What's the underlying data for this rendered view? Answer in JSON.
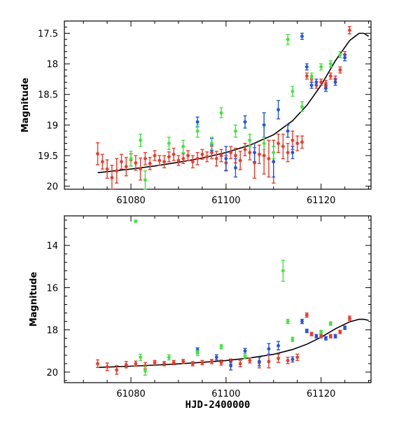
{
  "colors": {
    "red": "#ee3a2a",
    "blue": "#1f55e6",
    "green": "#3ee63a",
    "model": "#000000"
  },
  "xlabel": "HJD-2400000",
  "chart_data": [
    {
      "type": "scatter",
      "panel": "top",
      "ylabel": "Magnitude",
      "xlim": [
        61066,
        61130.5
      ],
      "ylim": [
        17.3,
        20.05
      ],
      "yinverted": true,
      "xticks": [
        "61080",
        "61100",
        "61120"
      ],
      "xtick_values": [
        61080,
        61100,
        61120
      ],
      "yticks": [
        "17.5",
        "18",
        "18.5",
        "19",
        "19.5",
        "20"
      ],
      "ytick_values": [
        17.5,
        18,
        18.5,
        19,
        19.5,
        20
      ],
      "series": [
        {
          "name": "red",
          "points": [
            [
              61073,
              19.47,
              0.18
            ],
            [
              61074,
              19.6,
              0.12
            ],
            [
              61075,
              19.72,
              0.15
            ],
            [
              61076,
              19.86,
              0.2
            ],
            [
              61077,
              19.75,
              0.2
            ],
            [
              61078,
              19.6,
              0.12
            ],
            [
              61079,
              19.68,
              0.15
            ],
            [
              61080,
              19.57,
              0.1
            ],
            [
              61081,
              19.62,
              0.12
            ],
            [
              61082,
              19.72,
              0.18
            ],
            [
              61083,
              19.55,
              0.1
            ],
            [
              61084,
              19.63,
              0.1
            ],
            [
              61085,
              19.5,
              0.08
            ],
            [
              61086,
              19.58,
              0.08
            ],
            [
              61087,
              19.6,
              0.1
            ],
            [
              61088,
              19.52,
              0.08
            ],
            [
              61089,
              19.48,
              0.1
            ],
            [
              61090,
              19.58,
              0.08
            ],
            [
              61091,
              19.55,
              0.08
            ],
            [
              61092,
              19.5,
              0.08
            ],
            [
              61093,
              19.6,
              0.1
            ],
            [
              61094,
              19.55,
              0.1
            ],
            [
              61095,
              19.48,
              0.08
            ],
            [
              61096,
              19.52,
              0.08
            ],
            [
              61097,
              19.45,
              0.1
            ],
            [
              61098,
              19.55,
              0.12
            ],
            [
              61099,
              19.5,
              0.1
            ],
            [
              61100,
              19.62,
              0.12
            ],
            [
              61101,
              19.45,
              0.1
            ],
            [
              61102,
              19.5,
              0.12
            ],
            [
              61103,
              19.58,
              0.15
            ],
            [
              61104,
              19.4,
              0.1
            ],
            [
              61105,
              19.45,
              0.12
            ],
            [
              61106,
              19.62,
              0.25
            ],
            [
              61107,
              19.48,
              0.15
            ],
            [
              61108,
              19.5,
              0.3
            ],
            [
              61109,
              19.55,
              0.3
            ],
            [
              61110,
              19.6,
              0.35
            ],
            [
              61111,
              19.3,
              0.15
            ],
            [
              61112,
              19.35,
              0.2
            ],
            [
              61113,
              19.45,
              0.15
            ],
            [
              61114,
              19.25,
              0.15
            ],
            [
              61115,
              19.3,
              0.12
            ],
            [
              61116,
              19.28,
              0.1
            ],
            [
              61117,
              18.2,
              0.05
            ],
            [
              61118,
              18.25,
              0.05
            ],
            [
              61119,
              18.35,
              0.05
            ],
            [
              61120,
              18.3,
              0.05
            ],
            [
              61121,
              18.32,
              0.05
            ],
            [
              61122,
              18.2,
              0.05
            ],
            [
              61123,
              18.25,
              0.05
            ],
            [
              61124,
              18.1,
              0.05
            ],
            [
              61125,
              17.85,
              0.05
            ],
            [
              61126,
              17.45,
              0.06
            ]
          ]
        },
        {
          "name": "blue",
          "points": [
            [
              61094,
              18.95,
              0.08
            ],
            [
              61097,
              19.32,
              0.1
            ],
            [
              61100,
              19.55,
              0.2
            ],
            [
              61102,
              19.7,
              0.15
            ],
            [
              61104,
              18.95,
              0.1
            ],
            [
              61106,
              19.45,
              0.15
            ],
            [
              61108,
              19.0,
              0.2
            ],
            [
              61110,
              19.6,
              0.25
            ],
            [
              61111,
              18.75,
              0.15
            ],
            [
              61113,
              19.1,
              0.1
            ],
            [
              61114,
              19.45,
              0.1
            ],
            [
              61116,
              17.55,
              0.05
            ],
            [
              61117,
              18.05,
              0.05
            ],
            [
              61118,
              18.35,
              0.05
            ],
            [
              61119,
              18.3,
              0.05
            ],
            [
              61121,
              18.4,
              0.05
            ],
            [
              61123,
              18.3,
              0.05
            ],
            [
              61125,
              17.9,
              0.05
            ]
          ]
        },
        {
          "name": "green",
          "points": [
            [
              61080,
              19.55,
              0.12
            ],
            [
              61082,
              19.25,
              0.1
            ],
            [
              61083,
              19.9,
              0.15
            ],
            [
              61088,
              19.3,
              0.1
            ],
            [
              61091,
              19.35,
              0.1
            ],
            [
              61094,
              19.1,
              0.1
            ],
            [
              61097,
              19.3,
              0.1
            ],
            [
              61099,
              18.8,
              0.08
            ],
            [
              61102,
              19.1,
              0.1
            ],
            [
              61105,
              19.25,
              0.1
            ],
            [
              61108,
              19.3,
              0.1
            ],
            [
              61110,
              19.45,
              0.1
            ],
            [
              61113,
              17.6,
              0.08
            ],
            [
              61114,
              18.45,
              0.08
            ],
            [
              61116,
              18.7,
              0.08
            ],
            [
              61118,
              18.2,
              0.05
            ],
            [
              61120,
              18.05,
              0.05
            ],
            [
              61122,
              18.0,
              0.05
            ],
            [
              61124,
              17.85,
              0.05
            ]
          ]
        }
      ],
      "model": [
        [
          61073,
          19.78
        ],
        [
          61080,
          19.72
        ],
        [
          61085,
          19.67
        ],
        [
          61090,
          19.61
        ],
        [
          61095,
          19.54
        ],
        [
          61100,
          19.45
        ],
        [
          61105,
          19.33
        ],
        [
          61110,
          19.16
        ],
        [
          61114,
          18.93
        ],
        [
          61117,
          18.68
        ],
        [
          61120,
          18.35
        ],
        [
          61123,
          17.95
        ],
        [
          61126,
          17.62
        ],
        [
          61128,
          17.5
        ],
        [
          61129,
          17.5
        ],
        [
          61130,
          17.55
        ]
      ]
    },
    {
      "type": "scatter",
      "panel": "bottom",
      "ylabel": "Magnitude",
      "xlim": [
        61066,
        61130.5
      ],
      "ylim": [
        12.6,
        20.5
      ],
      "yinverted": true,
      "xticks": [
        "61080",
        "61100",
        "61120"
      ],
      "xtick_values": [
        61080,
        61100,
        61120
      ],
      "yticks": [
        "14",
        "16",
        "18",
        "20"
      ],
      "ytick_values": [
        14,
        16,
        18,
        20
      ],
      "series": [
        {
          "name": "red",
          "points": [
            [
              61073,
              19.6,
              0.18
            ],
            [
              61075,
              19.75,
              0.18
            ],
            [
              61077,
              19.9,
              0.2
            ],
            [
              61079,
              19.65,
              0.15
            ],
            [
              61081,
              19.6,
              0.12
            ],
            [
              61083,
              19.7,
              0.15
            ],
            [
              61085,
              19.55,
              0.1
            ],
            [
              61087,
              19.6,
              0.1
            ],
            [
              61089,
              19.55,
              0.1
            ],
            [
              61091,
              19.5,
              0.1
            ],
            [
              61093,
              19.6,
              0.1
            ],
            [
              61095,
              19.55,
              0.1
            ],
            [
              61097,
              19.5,
              0.1
            ],
            [
              61099,
              19.55,
              0.12
            ],
            [
              61101,
              19.5,
              0.12
            ],
            [
              61103,
              19.6,
              0.15
            ],
            [
              61105,
              19.45,
              0.12
            ],
            [
              61107,
              19.55,
              0.25
            ],
            [
              61109,
              19.5,
              0.3
            ],
            [
              61111,
              19.35,
              0.2
            ],
            [
              61113,
              19.45,
              0.15
            ],
            [
              61115,
              19.3,
              0.15
            ],
            [
              61117,
              17.3,
              0.1
            ],
            [
              61118,
              18.2,
              0.08
            ],
            [
              61120,
              18.3,
              0.08
            ],
            [
              61122,
              18.3,
              0.08
            ],
            [
              61124,
              18.1,
              0.08
            ],
            [
              61126,
              17.45,
              0.1
            ]
          ]
        },
        {
          "name": "blue",
          "points": [
            [
              61094,
              18.95,
              0.1
            ],
            [
              61098,
              19.3,
              0.12
            ],
            [
              61101,
              19.7,
              0.2
            ],
            [
              61104,
              19.0,
              0.12
            ],
            [
              61107,
              19.5,
              0.2
            ],
            [
              61109,
              18.9,
              0.25
            ],
            [
              61111,
              18.75,
              0.2
            ],
            [
              61114,
              19.4,
              0.12
            ],
            [
              61116,
              17.6,
              0.1
            ],
            [
              61117,
              18.05,
              0.08
            ],
            [
              61119,
              18.3,
              0.08
            ],
            [
              61121,
              18.4,
              0.08
            ],
            [
              61123,
              18.3,
              0.08
            ],
            [
              61125,
              17.9,
              0.08
            ]
          ]
        },
        {
          "name": "green",
          "points": [
            [
              61081,
              12.85,
              0.05
            ],
            [
              61082,
              19.3,
              0.15
            ],
            [
              61083,
              19.95,
              0.2
            ],
            [
              61088,
              19.3,
              0.12
            ],
            [
              61094,
              19.1,
              0.12
            ],
            [
              61099,
              18.8,
              0.1
            ],
            [
              61104,
              19.25,
              0.12
            ],
            [
              61112,
              15.2,
              0.5
            ],
            [
              61113,
              17.6,
              0.1
            ],
            [
              61114,
              18.45,
              0.1
            ],
            [
              61120,
              18.1,
              0.08
            ],
            [
              61122,
              17.7,
              0.08
            ]
          ]
        }
      ],
      "model": [
        [
          61073,
          19.78
        ],
        [
          61080,
          19.72
        ],
        [
          61085,
          19.67
        ],
        [
          61090,
          19.61
        ],
        [
          61095,
          19.54
        ],
        [
          61100,
          19.45
        ],
        [
          61105,
          19.33
        ],
        [
          61110,
          19.16
        ],
        [
          61114,
          18.93
        ],
        [
          61117,
          18.68
        ],
        [
          61120,
          18.35
        ],
        [
          61123,
          17.95
        ],
        [
          61126,
          17.62
        ],
        [
          61128,
          17.5
        ],
        [
          61129,
          17.5
        ],
        [
          61130,
          17.55
        ]
      ]
    }
  ]
}
